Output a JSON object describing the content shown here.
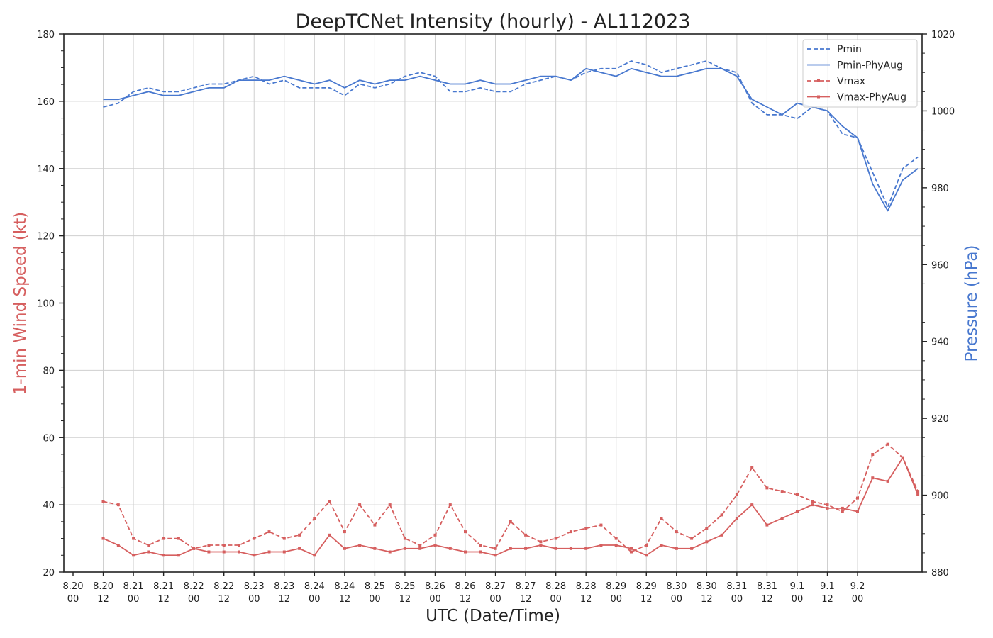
{
  "chart_data": {
    "type": "line",
    "title": "DeepTCNet Intensity (hourly) - AL112023",
    "xlabel": "UTC (Date/Time)",
    "ylabel_left": "1-min Wind Speed (kt)",
    "ylabel_right": "Pressure (hPa)",
    "ylim_left": [
      20,
      180
    ],
    "ylim_right": [
      880,
      1020
    ],
    "yticks_left": [
      "20",
      "40",
      "60",
      "80",
      "100",
      "120",
      "140",
      "160",
      "180"
    ],
    "yticks_right": [
      "880",
      "900",
      "920",
      "940",
      "960",
      "980",
      "1000",
      "1020"
    ],
    "x_tick_labels": [
      [
        "8.20",
        "00"
      ],
      [
        "8.20",
        "12"
      ],
      [
        "8.21",
        "00"
      ],
      [
        "8.21",
        "12"
      ],
      [
        "8.22",
        "00"
      ],
      [
        "8.22",
        "12"
      ],
      [
        "8.23",
        "00"
      ],
      [
        "8.23",
        "12"
      ],
      [
        "8.24",
        "00"
      ],
      [
        "8.24",
        "12"
      ],
      [
        "8.25",
        "00"
      ],
      [
        "8.25",
        "12"
      ],
      [
        "8.26",
        "00"
      ],
      [
        "8.26",
        "12"
      ],
      [
        "8.27",
        "00"
      ],
      [
        "8.27",
        "12"
      ],
      [
        "8.28",
        "00"
      ],
      [
        "8.28",
        "12"
      ],
      [
        "8.29",
        "00"
      ],
      [
        "8.29",
        "12"
      ],
      [
        "8.30",
        "00"
      ],
      [
        "8.30",
        "12"
      ],
      [
        "8.31",
        "00"
      ],
      [
        "8.31",
        "12"
      ],
      [
        "9.1",
        "00"
      ],
      [
        "9.1",
        "12"
      ],
      [
        "9.2",
        "00"
      ]
    ],
    "x_unit": "hours from 8.20 00 UTC",
    "grid": true,
    "legend_position": "top-right",
    "colors": {
      "pressure": "#4878cf",
      "wind": "#d65f5f"
    },
    "series": [
      {
        "name": "Pmin",
        "axis": "right",
        "style": "dashed",
        "x": [
          12,
          18,
          24,
          30,
          36,
          42,
          48,
          54,
          60,
          66,
          72,
          78,
          84,
          90,
          96,
          102,
          108,
          114,
          120,
          126,
          132,
          138,
          144,
          150,
          156,
          162,
          168,
          174,
          180,
          186,
          192,
          198,
          204,
          210,
          216,
          222,
          228,
          234,
          240,
          246,
          252,
          258,
          264,
          270,
          276,
          282,
          288,
          294,
          300,
          306,
          312,
          318,
          324,
          330,
          336
        ],
        "values": [
          1001,
          1002,
          1005,
          1006,
          1005,
          1005,
          1006,
          1007,
          1007,
          1008,
          1009,
          1007,
          1008,
          1006,
          1006,
          1006,
          1004,
          1007,
          1006,
          1007,
          1009,
          1010,
          1009,
          1005,
          1005,
          1006,
          1005,
          1005,
          1007,
          1008,
          1009,
          1008,
          1010,
          1011,
          1011,
          1013,
          1012,
          1010,
          1011,
          1012,
          1013,
          1011,
          1010,
          1002,
          999,
          999,
          998,
          1001,
          1000,
          994,
          993,
          984,
          975,
          985,
          988
        ]
      },
      {
        "name": "Pmin-PhyAug",
        "axis": "right",
        "style": "solid",
        "x": [
          12,
          18,
          24,
          30,
          36,
          42,
          48,
          54,
          60,
          66,
          72,
          78,
          84,
          90,
          96,
          102,
          108,
          114,
          120,
          126,
          132,
          138,
          144,
          150,
          156,
          162,
          168,
          174,
          180,
          186,
          192,
          198,
          204,
          210,
          216,
          222,
          228,
          234,
          240,
          246,
          252,
          258,
          264,
          270,
          276,
          282,
          288,
          294,
          300,
          306,
          312,
          318,
          324,
          330,
          336
        ],
        "values": [
          1003,
          1003,
          1004,
          1005,
          1004,
          1004,
          1005,
          1006,
          1006,
          1008,
          1008,
          1008,
          1009,
          1008,
          1007,
          1008,
          1006,
          1008,
          1007,
          1008,
          1008,
          1009,
          1008,
          1007,
          1007,
          1008,
          1007,
          1007,
          1008,
          1009,
          1009,
          1008,
          1011,
          1010,
          1009,
          1011,
          1010,
          1009,
          1009,
          1010,
          1011,
          1011,
          1009,
          1003,
          1001,
          999,
          1002,
          1001,
          1000,
          996,
          993,
          981,
          974,
          982,
          985
        ]
      },
      {
        "name": "Vmax",
        "axis": "left",
        "style": "dashed-marker",
        "x": [
          12,
          18,
          24,
          30,
          36,
          42,
          48,
          54,
          60,
          66,
          72,
          78,
          84,
          90,
          96,
          102,
          108,
          114,
          120,
          126,
          132,
          138,
          144,
          150,
          156,
          162,
          168,
          174,
          180,
          186,
          192,
          198,
          204,
          210,
          216,
          222,
          228,
          234,
          240,
          246,
          252,
          258,
          264,
          270,
          276,
          282,
          288,
          294,
          300,
          306,
          312,
          318,
          324,
          330,
          336
        ],
        "values": [
          41,
          40,
          30,
          28,
          30,
          30,
          27,
          28,
          28,
          28,
          30,
          32,
          30,
          31,
          36,
          41,
          32,
          40,
          34,
          40,
          30,
          28,
          31,
          40,
          32,
          28,
          27,
          35,
          31,
          29,
          30,
          32,
          33,
          34,
          30,
          26,
          28,
          36,
          32,
          30,
          33,
          37,
          43,
          51,
          45,
          44,
          43,
          41,
          40,
          38,
          42,
          55,
          58,
          54,
          44
        ]
      },
      {
        "name": "Vmax-PhyAug",
        "axis": "left",
        "style": "solid-marker",
        "x": [
          12,
          18,
          24,
          30,
          36,
          42,
          48,
          54,
          60,
          66,
          72,
          78,
          84,
          90,
          96,
          102,
          108,
          114,
          120,
          126,
          132,
          138,
          144,
          150,
          156,
          162,
          168,
          174,
          180,
          186,
          192,
          198,
          204,
          210,
          216,
          222,
          228,
          234,
          240,
          246,
          252,
          258,
          264,
          270,
          276,
          282,
          288,
          294,
          300,
          306,
          312,
          318,
          324,
          330,
          336
        ],
        "values": [
          30,
          28,
          25,
          26,
          25,
          25,
          27,
          26,
          26,
          26,
          25,
          26,
          26,
          27,
          25,
          31,
          27,
          28,
          27,
          26,
          27,
          27,
          28,
          27,
          26,
          26,
          25,
          27,
          27,
          28,
          27,
          27,
          27,
          28,
          28,
          27,
          25,
          28,
          27,
          27,
          29,
          31,
          36,
          40,
          34,
          36,
          38,
          40,
          39,
          39,
          38,
          48,
          47,
          54,
          43
        ]
      }
    ]
  }
}
